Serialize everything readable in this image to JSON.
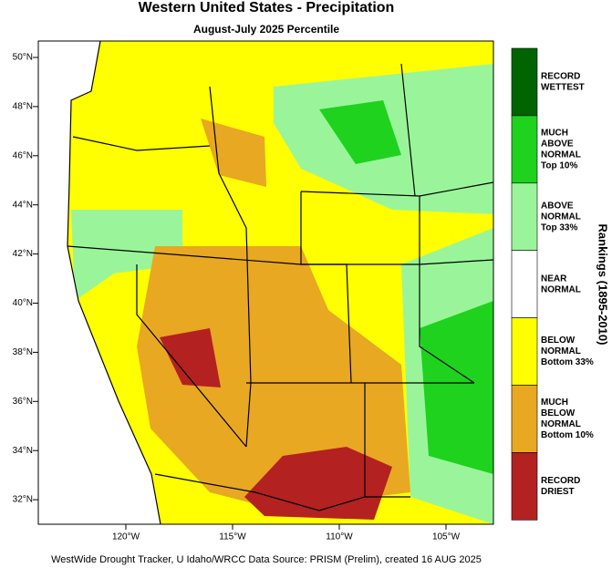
{
  "header": {
    "title": "Western United States - Precipitation",
    "subtitle": "August-July 2025 Percentile"
  },
  "map": {
    "lat_ticks": [
      "50°N",
      "48°N",
      "46°N",
      "44°N",
      "42°N",
      "40°N",
      "38°N",
      "36°N",
      "34°N",
      "32°N"
    ],
    "lon_ticks": [
      "120°W",
      "115°W",
      "110°W",
      "105°W"
    ]
  },
  "legend": {
    "title": "Rankings (1895-2010)",
    "items": [
      {
        "lines": [
          "RECORD",
          "WETTEST"
        ],
        "color": "#006400"
      },
      {
        "lines": [
          "MUCH",
          "ABOVE",
          "NORMAL",
          "Top 10%"
        ],
        "color": "#1ed21e"
      },
      {
        "lines": [
          "ABOVE",
          "NORMAL",
          "Top 33%"
        ],
        "color": "#9af59a"
      },
      {
        "lines": [
          "NEAR",
          "NORMAL"
        ],
        "color": "#ffffff"
      },
      {
        "lines": [
          "BELOW",
          "NORMAL",
          "Bottom 33%"
        ],
        "color": "#ffff00"
      },
      {
        "lines": [
          "MUCH",
          "BELOW",
          "NORMAL",
          "Bottom 10%"
        ],
        "color": "#e8a822"
      },
      {
        "lines": [
          "RECORD",
          "DRIEST"
        ],
        "color": "#b42121"
      }
    ]
  },
  "footer": "WestWide Drought Tracker, U Idaho/WRCC Data Source: PRISM (Prelim), created 16 AUG 2025"
}
